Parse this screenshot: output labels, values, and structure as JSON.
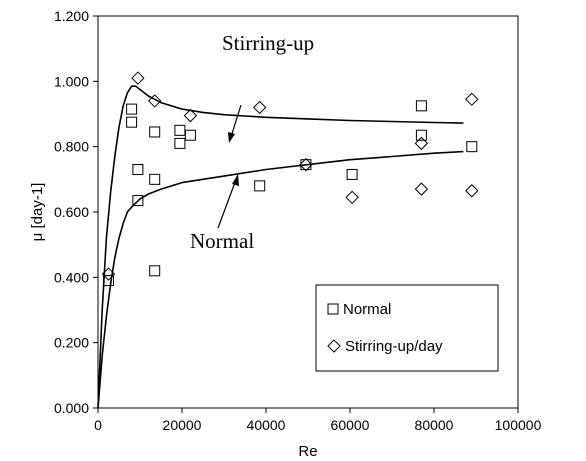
{
  "chart_data": {
    "type": "scatter",
    "xlabel": "Re",
    "ylabel": "μ [day-1]",
    "xlim": [
      0,
      100000
    ],
    "ylim": [
      0,
      1.2
    ],
    "x_ticks": [
      "0",
      "20000",
      "40000",
      "60000",
      "80000",
      "100000"
    ],
    "y_ticks": [
      "0.000",
      "0.200",
      "0.400",
      "0.600",
      "0.800",
      "1.000",
      "1.200"
    ],
    "grid": false,
    "legend": {
      "position": "bottom-right",
      "entries": [
        {
          "label": "Normal",
          "marker": "square"
        },
        {
          "label": "Stirring-up/day",
          "marker": "diamond"
        }
      ]
    },
    "annotations": [
      "Stirring-up",
      "Normal"
    ],
    "series": [
      {
        "name": "Normal",
        "marker": "square",
        "points": [
          [
            2500,
            0.39
          ],
          [
            8000,
            0.915
          ],
          [
            8000,
            0.875
          ],
          [
            9500,
            0.73
          ],
          [
            9500,
            0.635
          ],
          [
            13500,
            0.845
          ],
          [
            13500,
            0.7
          ],
          [
            13500,
            0.42
          ],
          [
            19500,
            0.85
          ],
          [
            19500,
            0.81
          ],
          [
            22000,
            0.835
          ],
          [
            38500,
            0.68
          ],
          [
            49500,
            0.745
          ],
          [
            60500,
            0.715
          ],
          [
            77000,
            0.925
          ],
          [
            77000,
            0.835
          ],
          [
            89000,
            0.8
          ]
        ]
      },
      {
        "name": "Stirring-up/day",
        "marker": "diamond",
        "points": [
          [
            2500,
            0.41
          ],
          [
            9500,
            1.01
          ],
          [
            13500,
            0.94
          ],
          [
            22000,
            0.895
          ],
          [
            38500,
            0.92
          ],
          [
            49500,
            0.745
          ],
          [
            60500,
            0.645
          ],
          [
            77000,
            0.81
          ],
          [
            77000,
            0.67
          ],
          [
            89000,
            0.945
          ],
          [
            89000,
            0.665
          ]
        ]
      }
    ],
    "curves": [
      {
        "label": "Stirring-up",
        "points": [
          [
            0,
            0
          ],
          [
            1000,
            0.3
          ],
          [
            2000,
            0.52
          ],
          [
            3000,
            0.66
          ],
          [
            4000,
            0.77
          ],
          [
            5000,
            0.86
          ],
          [
            6000,
            0.925
          ],
          [
            7000,
            0.965
          ],
          [
            8000,
            0.985
          ],
          [
            9000,
            0.985
          ],
          [
            10000,
            0.975
          ],
          [
            12000,
            0.955
          ],
          [
            15000,
            0.935
          ],
          [
            20000,
            0.915
          ],
          [
            25000,
            0.905
          ],
          [
            30000,
            0.898
          ],
          [
            40000,
            0.89
          ],
          [
            50000,
            0.885
          ],
          [
            60000,
            0.88
          ],
          [
            70000,
            0.877
          ],
          [
            80000,
            0.874
          ],
          [
            87000,
            0.872
          ]
        ]
      },
      {
        "label": "Normal",
        "points": [
          [
            0,
            0
          ],
          [
            500,
            0.08
          ],
          [
            1000,
            0.16
          ],
          [
            1500,
            0.22
          ],
          [
            2000,
            0.28
          ],
          [
            3000,
            0.38
          ],
          [
            4000,
            0.46
          ],
          [
            5000,
            0.52
          ],
          [
            6000,
            0.565
          ],
          [
            7000,
            0.6
          ],
          [
            8000,
            0.615
          ],
          [
            10000,
            0.64
          ],
          [
            12000,
            0.655
          ],
          [
            15000,
            0.67
          ],
          [
            20000,
            0.69
          ],
          [
            30000,
            0.71
          ],
          [
            40000,
            0.73
          ],
          [
            50000,
            0.745
          ],
          [
            60000,
            0.76
          ],
          [
            70000,
            0.77
          ],
          [
            80000,
            0.78
          ],
          [
            87000,
            0.785
          ]
        ]
      }
    ]
  }
}
